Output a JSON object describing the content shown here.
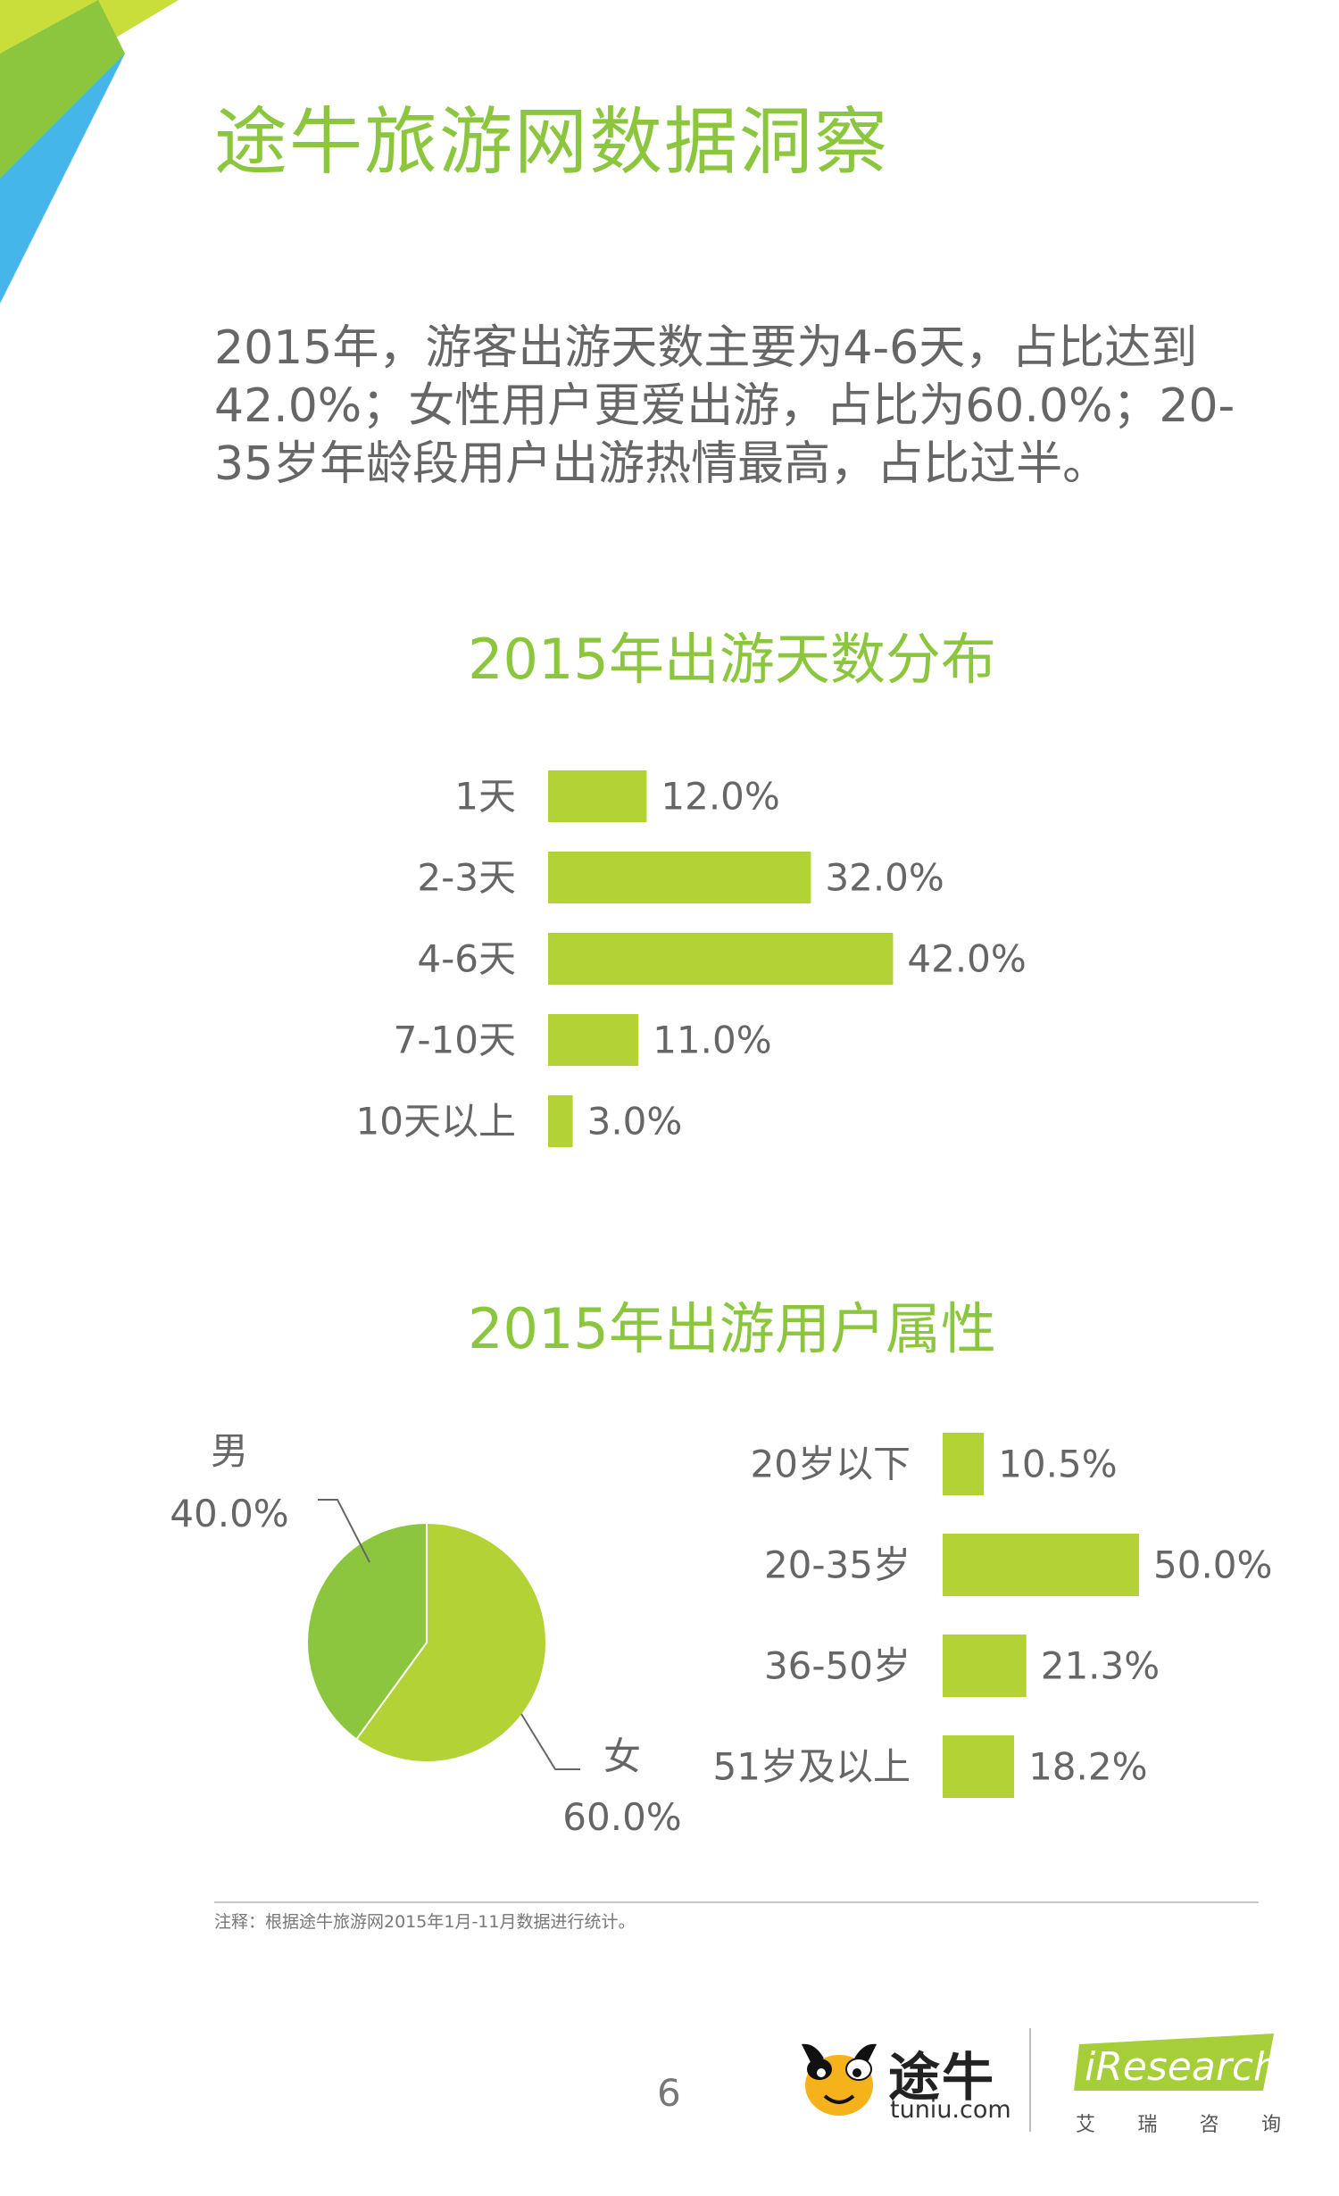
{
  "page_title": "途牛旅游网数据洞察",
  "summary": "2015年，游客出游天数主要为4-6天，占比达到42.0%；女性用户更爱出游，占比为60.0%；20-35岁年龄段用户出游热情最高，占比过半。",
  "colors": {
    "accent": "#8cc63f",
    "bar": "#b3d236",
    "pie_female": "#b3d236",
    "pie_male": "#8cc63f",
    "corner_blue": "#45b6ea"
  },
  "chart_data": [
    {
      "type": "bar",
      "orientation": "horizontal",
      "title": "2015年出游天数分布",
      "categories": [
        "1天",
        "2-3天",
        "4-6天",
        "7-10天",
        "10天以上"
      ],
      "values": [
        12.0,
        32.0,
        42.0,
        11.0,
        3.0
      ],
      "labels": [
        "12.0%",
        "32.0%",
        "42.0%",
        "11.0%",
        "3.0%"
      ],
      "unit": "%",
      "grid": false,
      "legend": "none"
    },
    {
      "type": "pie",
      "title": "2015年出游用户属性",
      "slices": [
        {
          "name": "女",
          "value": 60.0,
          "label": "60.0%"
        },
        {
          "name": "男",
          "value": 40.0,
          "label": "40.0%"
        }
      ],
      "legend": "none"
    },
    {
      "type": "bar",
      "orientation": "horizontal",
      "title": "2015年出游用户属性",
      "categories": [
        "20岁以下",
        "20-35岁",
        "36-50岁",
        "51岁及以上"
      ],
      "values": [
        10.5,
        50.0,
        21.3,
        18.2
      ],
      "labels": [
        "10.5%",
        "50.0%",
        "21.3%",
        "18.2%"
      ],
      "unit": "%",
      "grid": false,
      "legend": "none"
    }
  ],
  "footer": {
    "note": "注释：根据途牛旅游网2015年1月-11月数据进行统计。",
    "page_number": "6",
    "tuniu_name": "途牛",
    "tuniu_domain": "tuniu.com",
    "iresearch_name": "iResearch",
    "iresearch_cn": [
      "艾",
      "瑞",
      "咨",
      "询"
    ]
  }
}
